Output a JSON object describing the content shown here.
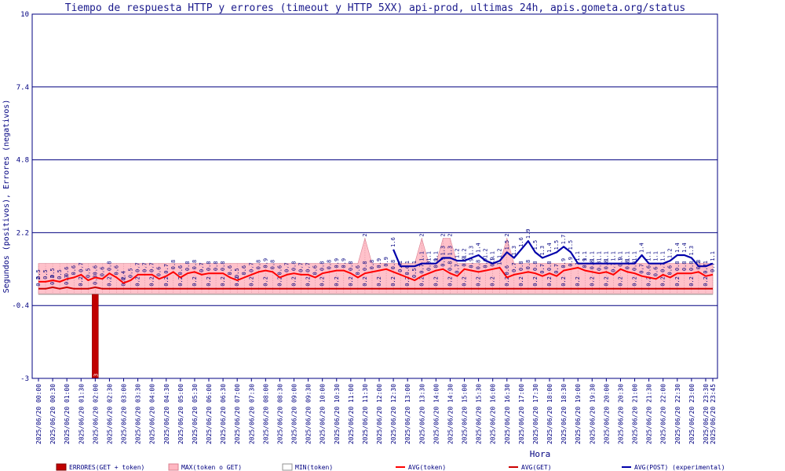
{
  "chart_data": {
    "type": "line",
    "title": "Tiempo de respuesta HTTP y errores (timeout y HTTP 5XX) api-prod, ultimas 24h, apis.gometa.org/status",
    "xlabel": "Hora",
    "ylabel": "Segundos (positivos), Errores (negativos)",
    "ylim": [
      -3,
      10
    ],
    "yticks": [
      "-3",
      "-0.4",
      "2.2",
      "4.8",
      "7.4",
      "10"
    ],
    "ytick_values": [
      -3,
      -0.4,
      2.2,
      4.8,
      7.4,
      10
    ],
    "grid": true,
    "legend_position": "bottom",
    "x": [
      "2025/06/20 00:00",
      "2025/06/20 00:15",
      "2025/06/20 00:30",
      "2025/06/20 00:45",
      "2025/06/20 01:00",
      "2025/06/20 01:15",
      "2025/06/20 01:30",
      "2025/06/20 01:45",
      "2025/06/20 02:00",
      "2025/06/20 02:15",
      "2025/06/20 02:30",
      "2025/06/20 02:45",
      "2025/06/20 03:00",
      "2025/06/20 03:15",
      "2025/06/20 03:30",
      "2025/06/20 03:45",
      "2025/06/20 04:00",
      "2025/06/20 04:15",
      "2025/06/20 04:30",
      "2025/06/20 04:45",
      "2025/06/20 05:00",
      "2025/06/20 05:15",
      "2025/06/20 05:30",
      "2025/06/20 05:45",
      "2025/06/20 06:00",
      "2025/06/20 06:15",
      "2025/06/20 06:30",
      "2025/06/20 06:45",
      "2025/06/20 07:00",
      "2025/06/20 07:15",
      "2025/06/20 07:30",
      "2025/06/20 07:45",
      "2025/06/20 08:00",
      "2025/06/20 08:15",
      "2025/06/20 08:30",
      "2025/06/20 08:45",
      "2025/06/20 09:00",
      "2025/06/20 09:15",
      "2025/06/20 09:30",
      "2025/06/20 09:45",
      "2025/06/20 10:00",
      "2025/06/20 10:15",
      "2025/06/20 10:30",
      "2025/06/20 10:45",
      "2025/06/20 11:00",
      "2025/06/20 11:15",
      "2025/06/20 11:30",
      "2025/06/20 11:45",
      "2025/06/20 12:00",
      "2025/06/20 12:15",
      "2025/06/20 12:30",
      "2025/06/20 12:45",
      "2025/06/20 13:00",
      "2025/06/20 13:15",
      "2025/06/20 13:30",
      "2025/06/20 13:45",
      "2025/06/20 14:00",
      "2025/06/20 14:15",
      "2025/06/20 14:30",
      "2025/06/20 14:45",
      "2025/06/20 15:00",
      "2025/06/20 15:15",
      "2025/06/20 15:30",
      "2025/06/20 15:45",
      "2025/06/20 16:00",
      "2025/06/20 16:15",
      "2025/06/20 16:30",
      "2025/06/20 16:45",
      "2025/06/20 17:00",
      "2025/06/20 17:15",
      "2025/06/20 17:30",
      "2025/06/20 17:45",
      "2025/06/20 18:00",
      "2025/06/20 18:15",
      "2025/06/20 18:30",
      "2025/06/20 18:45",
      "2025/06/20 19:00",
      "2025/06/20 19:15",
      "2025/06/20 19:30",
      "2025/06/20 19:45",
      "2025/06/20 20:00",
      "2025/06/20 20:15",
      "2025/06/20 20:30",
      "2025/06/20 20:45",
      "2025/06/20 21:00",
      "2025/06/20 21:15",
      "2025/06/20 21:30",
      "2025/06/20 21:45",
      "2025/06/20 22:00",
      "2025/06/20 22:15",
      "2025/06/20 22:30",
      "2025/06/20 22:45",
      "2025/06/20 23:00",
      "2025/06/20 23:15",
      "2025/06/20 23:30",
      "2025/06/20 23:45"
    ],
    "xtick_labels": [
      "2025/06/20 00:00",
      "2025/06/20 00:30",
      "2025/06/20 01:00",
      "2025/06/20 01:30",
      "2025/06/20 02:00",
      "2025/06/20 02:30",
      "2025/06/20 03:00",
      "2025/06/20 03:30",
      "2025/06/20 04:00",
      "2025/06/20 04:30",
      "2025/06/20 05:00",
      "2025/06/20 05:30",
      "2025/06/20 06:00",
      "2025/06/20 06:30",
      "2025/06/20 07:00",
      "2025/06/20 07:30",
      "2025/06/20 08:00",
      "2025/06/20 08:30",
      "2025/06/20 09:00",
      "2025/06/20 09:30",
      "2025/06/20 10:00",
      "2025/06/20 10:30",
      "2025/06/20 11:00",
      "2025/06/20 11:30",
      "2025/06/20 12:00",
      "2025/06/20 12:30",
      "2025/06/20 13:00",
      "2025/06/20 13:30",
      "2025/06/20 14:00",
      "2025/06/20 14:30",
      "2025/06/20 15:00",
      "2025/06/20 15:30",
      "2025/06/20 16:00",
      "2025/06/20 16:30",
      "2025/06/20 17:00",
      "2025/06/20 17:30",
      "2025/06/20 18:00",
      "2025/06/20 18:30",
      "2025/06/20 19:00",
      "2025/06/20 19:30",
      "2025/06/20 20:00",
      "2025/06/20 20:30",
      "2025/06/20 21:00",
      "2025/06/20 21:30",
      "2025/06/20 22:00",
      "2025/06/20 22:30",
      "2025/06/20 23:00",
      "2025/06/20 23:30",
      "2025/06/20 23:45"
    ],
    "series": [
      {
        "name": "ERRORES(GET + token)",
        "kind": "bar",
        "color": "#c00000",
        "values": [
          0,
          0,
          0,
          0,
          0,
          0,
          0,
          0,
          -3,
          0,
          0,
          0,
          0,
          0,
          0,
          0,
          0,
          0,
          0,
          0,
          0,
          0,
          0,
          0,
          0,
          0,
          0,
          0,
          0,
          0,
          0,
          0,
          0,
          0,
          0,
          0,
          0,
          0,
          0,
          0,
          0,
          0,
          0,
          0,
          0,
          0,
          0,
          0,
          0,
          0,
          0,
          0,
          0,
          0,
          0,
          0,
          0,
          0,
          0,
          0,
          0,
          0,
          0,
          0,
          0,
          0,
          0,
          0,
          0,
          0,
          0,
          0,
          0,
          0,
          0,
          0,
          0,
          0,
          0,
          0,
          0,
          0,
          0,
          0,
          0,
          0,
          0,
          0,
          0,
          0,
          0,
          0,
          0,
          0,
          0,
          0
        ]
      },
      {
        "name": "MAX(token o GET)",
        "kind": "area",
        "color": "#ffb6c1",
        "values": [
          1.1,
          1.1,
          1.1,
          1.1,
          1.1,
          1.1,
          1.1,
          1.1,
          1.1,
          1.1,
          1.1,
          1.1,
          1.1,
          1.1,
          1.1,
          1.1,
          1.1,
          1.1,
          1.1,
          1.1,
          1.1,
          1.1,
          1.1,
          1.1,
          1.1,
          1.1,
          1.1,
          1.1,
          1.1,
          1.1,
          1.1,
          1.1,
          1.1,
          1.1,
          1.1,
          1.1,
          1.1,
          1.1,
          1.1,
          1.1,
          1.1,
          1.1,
          1.1,
          1.1,
          1.1,
          1.1,
          2,
          1.1,
          1.1,
          1.1,
          1.1,
          1.1,
          1.1,
          1.1,
          2,
          1.1,
          1.1,
          2,
          2,
          1.1,
          1.1,
          1.1,
          1.1,
          1.1,
          1.1,
          1.1,
          2,
          1.1,
          1.1,
          1.1,
          1.1,
          1.1,
          1.1,
          1.1,
          1.1,
          1.1,
          1.1,
          1.1,
          1.1,
          1.1,
          1.1,
          1.1,
          1.1,
          1.1,
          1.1,
          1.1,
          1.1,
          1.1,
          1.1,
          1.1,
          1.1,
          1.1,
          1.1,
          1.1,
          1.1,
          1.1
        ]
      },
      {
        "name": "MIN(token)",
        "kind": "line",
        "color": "#909090",
        "values": [
          0,
          0,
          0,
          0,
          0,
          0,
          0,
          0,
          0,
          0,
          0,
          0,
          0,
          0,
          0,
          0,
          0,
          0,
          0,
          0,
          0,
          0,
          0,
          0,
          0,
          0,
          0,
          0,
          0,
          0,
          0,
          0,
          0,
          0,
          0,
          0,
          0,
          0,
          0,
          0,
          0,
          0,
          0,
          0,
          0,
          0,
          0,
          0,
          0,
          0,
          0,
          0,
          0,
          0,
          0,
          0,
          0,
          0,
          0,
          0,
          0,
          0,
          0,
          0,
          0,
          0,
          0,
          0,
          0,
          0,
          0,
          0,
          0,
          0,
          0,
          0,
          0,
          0,
          0,
          0,
          0,
          0,
          0,
          0,
          0,
          0,
          0,
          0,
          0,
          0,
          0,
          0,
          0,
          0,
          0,
          0
        ]
      },
      {
        "name": "AVG(token)",
        "kind": "line",
        "color": "#ff0000",
        "values": [
          0.45,
          0.45,
          0.5,
          0.45,
          0.55,
          0.6,
          0.7,
          0.5,
          0.6,
          0.55,
          0.75,
          0.6,
          0.4,
          0.5,
          0.7,
          0.7,
          0.7,
          0.55,
          0.65,
          0.8,
          0.6,
          0.75,
          0.8,
          0.7,
          0.75,
          0.75,
          0.75,
          0.6,
          0.5,
          0.6,
          0.7,
          0.8,
          0.85,
          0.8,
          0.6,
          0.7,
          0.75,
          0.7,
          0.7,
          0.6,
          0.75,
          0.8,
          0.85,
          0.85,
          0.75,
          0.6,
          0.75,
          0.8,
          0.85,
          0.9,
          0.8,
          0.7,
          0.6,
          0.5,
          0.65,
          0.75,
          0.85,
          0.9,
          0.75,
          0.65,
          0.9,
          0.85,
          0.8,
          0.85,
          0.9,
          0.95,
          0.6,
          0.7,
          0.75,
          0.8,
          0.75,
          0.65,
          0.75,
          0.65,
          0.85,
          0.9,
          0.95,
          0.85,
          0.8,
          0.75,
          0.8,
          0.7,
          0.9,
          0.8,
          0.75,
          0.65,
          0.6,
          0.55,
          0.7,
          0.6,
          0.75,
          0.75,
          0.75,
          0.8,
          0.65,
          0.7
        ]
      },
      {
        "name": "AVG(GET)",
        "kind": "line",
        "color": "#cc0000",
        "values": [
          0.2,
          0.2,
          0.25,
          0.2,
          0.25,
          0.2,
          0.2,
          0.2,
          0.25,
          0.2,
          0.2,
          0.2,
          0.2,
          0.2,
          0.2,
          0.2,
          0.2,
          0.2,
          0.2,
          0.2,
          0.2,
          0.2,
          0.2,
          0.2,
          0.2,
          0.2,
          0.2,
          0.2,
          0.2,
          0.2,
          0.2,
          0.2,
          0.2,
          0.2,
          0.2,
          0.2,
          0.2,
          0.2,
          0.2,
          0.2,
          0.2,
          0.2,
          0.2,
          0.2,
          0.2,
          0.2,
          0.2,
          0.2,
          0.2,
          0.2,
          0.2,
          0.2,
          0.2,
          0.2,
          0.2,
          0.2,
          0.2,
          0.2,
          0.2,
          0.2,
          0.2,
          0.2,
          0.2,
          0.2,
          0.2,
          0.2,
          0.2,
          0.2,
          0.2,
          0.2,
          0.2,
          0.2,
          0.2,
          0.2,
          0.2,
          0.2,
          0.2,
          0.2,
          0.2,
          0.2,
          0.2,
          0.2,
          0.2,
          0.2,
          0.2,
          0.2,
          0.2,
          0.2,
          0.2,
          0.2,
          0.2,
          0.2,
          0.2,
          0.2,
          0.2,
          0.2
        ]
      },
      {
        "name": "AVG(POST) (experimental)",
        "kind": "line",
        "color": "#0000aa",
        "values": [
          null,
          null,
          null,
          null,
          null,
          null,
          null,
          null,
          null,
          null,
          null,
          null,
          null,
          null,
          null,
          null,
          null,
          null,
          null,
          null,
          null,
          null,
          null,
          null,
          null,
          null,
          null,
          null,
          null,
          null,
          null,
          null,
          null,
          null,
          null,
          null,
          null,
          null,
          null,
          null,
          null,
          null,
          null,
          null,
          null,
          null,
          null,
          null,
          null,
          null,
          1.6,
          1.0,
          1.0,
          1.0,
          1.1,
          1.1,
          1.1,
          1.3,
          1.3,
          1.2,
          1.2,
          1.3,
          1.4,
          1.2,
          1.1,
          1.2,
          1.5,
          1.3,
          1.6,
          1.9,
          1.5,
          1.3,
          1.4,
          1.5,
          1.7,
          1.5,
          1.1,
          1.1,
          1.1,
          1.1,
          1.1,
          1.1,
          1.1,
          1.1,
          1.1,
          1.4,
          1.1,
          1.1,
          1.1,
          1.2,
          1.4,
          1.4,
          1.3,
          1.0,
          1.0,
          1.1
        ]
      }
    ]
  }
}
